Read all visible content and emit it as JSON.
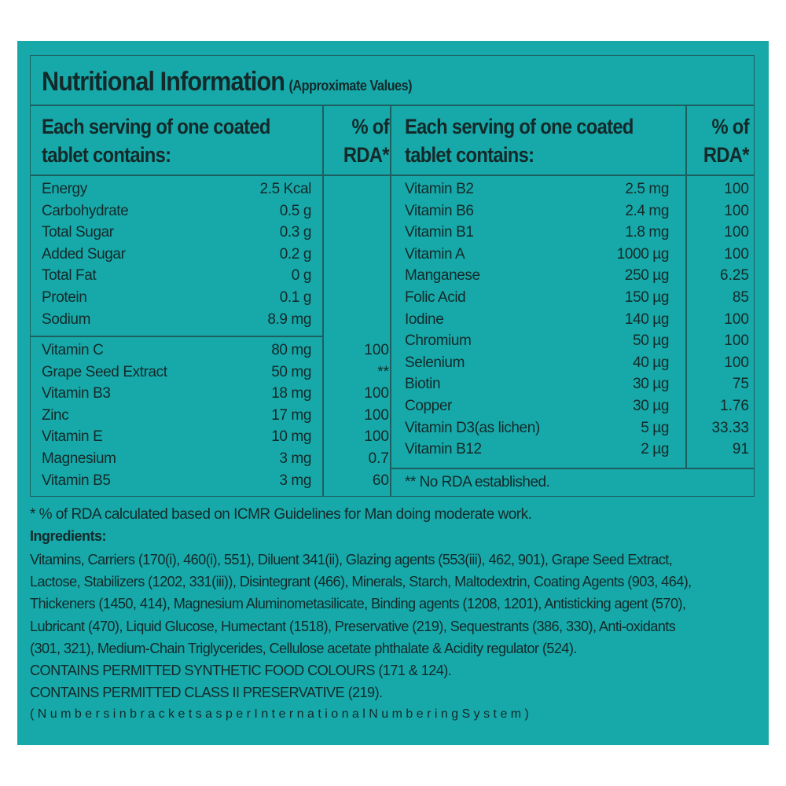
{
  "title": "Nutritional Information",
  "subtitle": "(Approximate Values)",
  "header": {
    "col_name_line1": "Each serving of one coated",
    "col_name_line2": "tablet contains:",
    "col_rda_line1": "% of",
    "col_rda_line2": "RDA*"
  },
  "left_group1": [
    {
      "name": "Energy",
      "amount": "2.5 Kcal"
    },
    {
      "name": "Carbohydrate",
      "amount": "0.5 g"
    },
    {
      "name": "Total Sugar",
      "amount": "0.3 g"
    },
    {
      "name": "Added Sugar",
      "amount": "0.2 g"
    },
    {
      "name": "Total Fat",
      "amount": "0 g"
    },
    {
      "name": "Protein",
      "amount": "0.1 g"
    },
    {
      "name": "Sodium",
      "amount": "8.9 mg"
    }
  ],
  "left_group2": [
    {
      "name": "Vitamin C",
      "amount": "80 mg",
      "rda": "100"
    },
    {
      "name": "Grape Seed Extract",
      "amount": "50 mg",
      "rda": "**"
    },
    {
      "name": "Vitamin B3",
      "amount": "18 mg",
      "rda": "100"
    },
    {
      "name": "Zinc",
      "amount": "17 mg",
      "rda": "100"
    },
    {
      "name": "Vitamin E",
      "amount": "10 mg",
      "rda": "100"
    },
    {
      "name": "Magnesium",
      "amount": "3 mg",
      "rda": "0.7"
    },
    {
      "name": "Vitamin B5",
      "amount": "3 mg",
      "rda": "60"
    }
  ],
  "right_rows": [
    {
      "name": "Vitamin B2",
      "amount": "2.5 mg",
      "rda": "100"
    },
    {
      "name": "Vitamin B6",
      "amount": "2.4 mg",
      "rda": "100"
    },
    {
      "name": "Vitamin B1",
      "amount": "1.8 mg",
      "rda": "100"
    },
    {
      "name": "Vitamin A",
      "amount": "1000 µg",
      "rda": "100"
    },
    {
      "name": "Manganese",
      "amount": "250 µg",
      "rda": "6.25"
    },
    {
      "name": "Folic Acid",
      "amount": "150 µg",
      "rda": "85"
    },
    {
      "name": "Iodine",
      "amount": "140 µg",
      "rda": "100"
    },
    {
      "name": "Chromium",
      "amount": "50 µg",
      "rda": "100"
    },
    {
      "name": "Selenium",
      "amount": "40 µg",
      "rda": "100"
    },
    {
      "name": "Biotin",
      "amount": "30 µg",
      "rda": "75"
    },
    {
      "name": "Copper",
      "amount": "30 µg",
      "rda": "1.76"
    },
    {
      "name": "Vitamin D3(as lichen)",
      "amount": "5 µg",
      "rda": "33.33"
    },
    {
      "name": "Vitamin B12",
      "amount": "2 µg",
      "rda": "91"
    }
  ],
  "no_rda_note": "** No RDA established.",
  "rda_footnote": "* % of RDA calculated based on ICMR Guidelines for Man doing moderate work.",
  "ingredients_heading": "Ingredients:",
  "ingredients_lines": [
    "Vitamins, Carriers (170(i), 460(i), 551), Diluent 341(ii), Glazing agents (553(iii), 462, 901), Grape Seed Extract,",
    "Lactose, Stabilizers (1202, 331(iii)), Disintegrant (466), Minerals, Starch, Maltodextrin, Coating Agents (903, 464),",
    "Thickeners (1450, 414), Magnesium Aluminometasilicate, Binding agents (1208, 1201), Antisticking agent (570),",
    "Lubricant (470), Liquid Glucose, Humectant (1518), Preservative (219), Sequestrants (386, 330), Anti-oxidants",
    "(301, 321), Medium-Chain Triglycerides, Cellulose acetate phthalate & Acidity regulator (524).",
    "CONTAINS PERMITTED SYNTHETIC FOOD COLOURS (171 & 124).",
    "CONTAINS PERMITTED CLASS II PRESERVATIVE (219).",
    "( N u m b e r s i n b r a c k e t s a s p e r I n t e r n a t i o n a l N u m b e r i n g S y s t e m )"
  ],
  "colors": {
    "background": "#17a9a9",
    "lines": "#1d5f60",
    "text": "#14292a"
  }
}
